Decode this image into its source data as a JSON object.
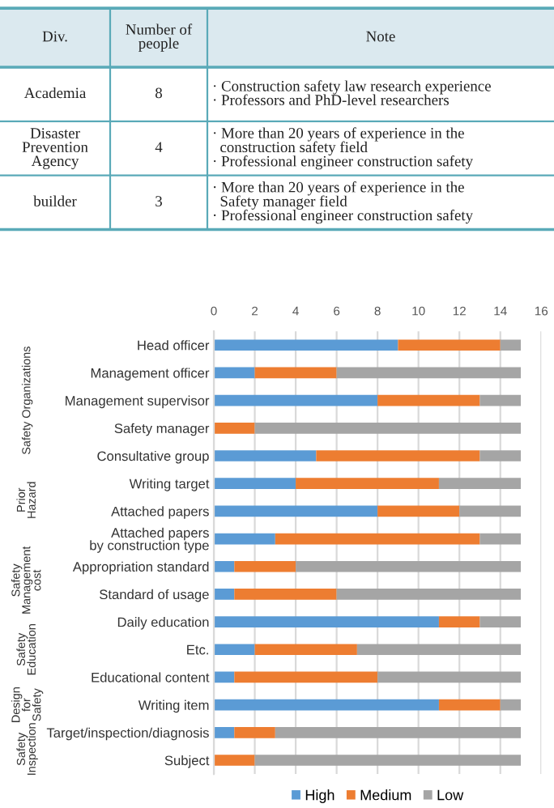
{
  "chart_data": [
    {
      "type": "other",
      "categories": [
        "Div.",
        "Number of\npeople",
        "Note"
      ],
      "cell_labels": [
        [
          "Academia",
          "8",
          "· Construction safety law research experience\n· Professors and PhD-level researchers"
        ],
        [
          "Disaster\nPrevention\nAgency",
          "4",
          "· More than 20 years of experience in the\n  construction safety field\n· Professional engineer construction safety"
        ],
        [
          "builder",
          "3",
          "· More than 20 years of experience in the\n  Safety manager field\n· Professional engineer construction safety"
        ]
      ]
    },
    {
      "type": "bar",
      "orientation": "horizontal",
      "stacked": true,
      "categories": [
        "Head officer",
        "Management officer",
        "Management supervisor",
        "Safety manager",
        "Consultative group",
        "Writing target",
        "Attached papers",
        "Attached papers\nby construction type",
        "Appropriation standard",
        "Standard of usage",
        "Daily education",
        "Etc.",
        "Educational content",
        "Writing item",
        "Target/inspection/diagnosis",
        "Subject"
      ],
      "series": [
        {
          "name": "High",
          "color": "#5b9bd5",
          "values": [
            9,
            2,
            8,
            0,
            5,
            4,
            8,
            3,
            1,
            1,
            11,
            2,
            1,
            11,
            1,
            0
          ]
        },
        {
          "name": "Medium",
          "color": "#ed7d31",
          "values": [
            5,
            4,
            5,
            2,
            8,
            7,
            4,
            10,
            3,
            5,
            2,
            5,
            7,
            3,
            2,
            2
          ]
        },
        {
          "name": "Low",
          "color": "#a5a5a5",
          "values": [
            1,
            9,
            2,
            13,
            2,
            4,
            3,
            2,
            11,
            9,
            2,
            8,
            7,
            1,
            12,
            13
          ]
        }
      ],
      "xlim": [
        0,
        16
      ],
      "xticks": [
        0,
        2,
        4,
        6,
        8,
        10,
        12,
        14,
        16
      ],
      "grid": "x",
      "legend": "bottom",
      "annotations": [
        "Safety Organizations",
        "Prior\nHazard",
        "Safety\nManagement\ncost",
        "Safety\nEducation",
        "Design\nfor\nSafety",
        "Safety\nInspection"
      ]
    }
  ]
}
